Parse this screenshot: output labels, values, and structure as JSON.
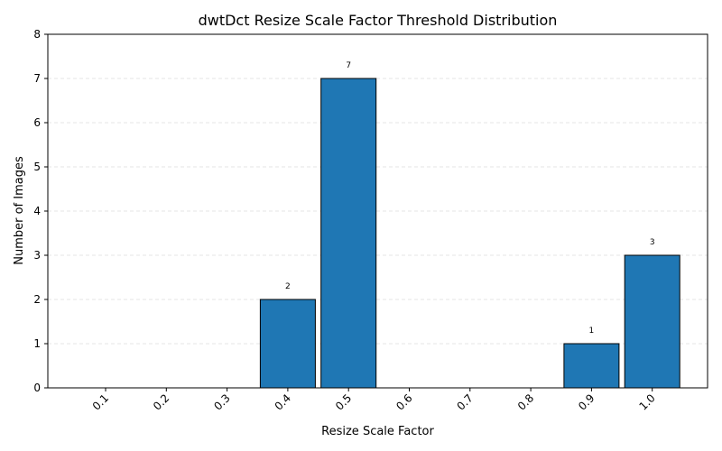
{
  "chart_data": {
    "type": "bar",
    "title": "dwtDct Resize Scale Factor Threshold Distribution",
    "xlabel": "Resize Scale Factor",
    "ylabel": "Number of Images",
    "categories": [
      "0.1",
      "0.2",
      "0.3",
      "0.4",
      "0.5",
      "0.6",
      "0.7",
      "0.8",
      "0.9",
      "1.0"
    ],
    "values": [
      0,
      0,
      0,
      2,
      7,
      0,
      0,
      0,
      1,
      3
    ],
    "value_labels": [
      "",
      "",
      "",
      "2",
      "7",
      "",
      "",
      "",
      "1",
      "3"
    ],
    "ylim": [
      0,
      8
    ],
    "yticks": [
      "0",
      "1",
      "2",
      "3",
      "4",
      "5",
      "6",
      "7",
      "8"
    ],
    "grid": "y-dashed",
    "bar_color": "#1f77b4",
    "edge_color": "#000000",
    "grid_color": "#dddddd"
  }
}
